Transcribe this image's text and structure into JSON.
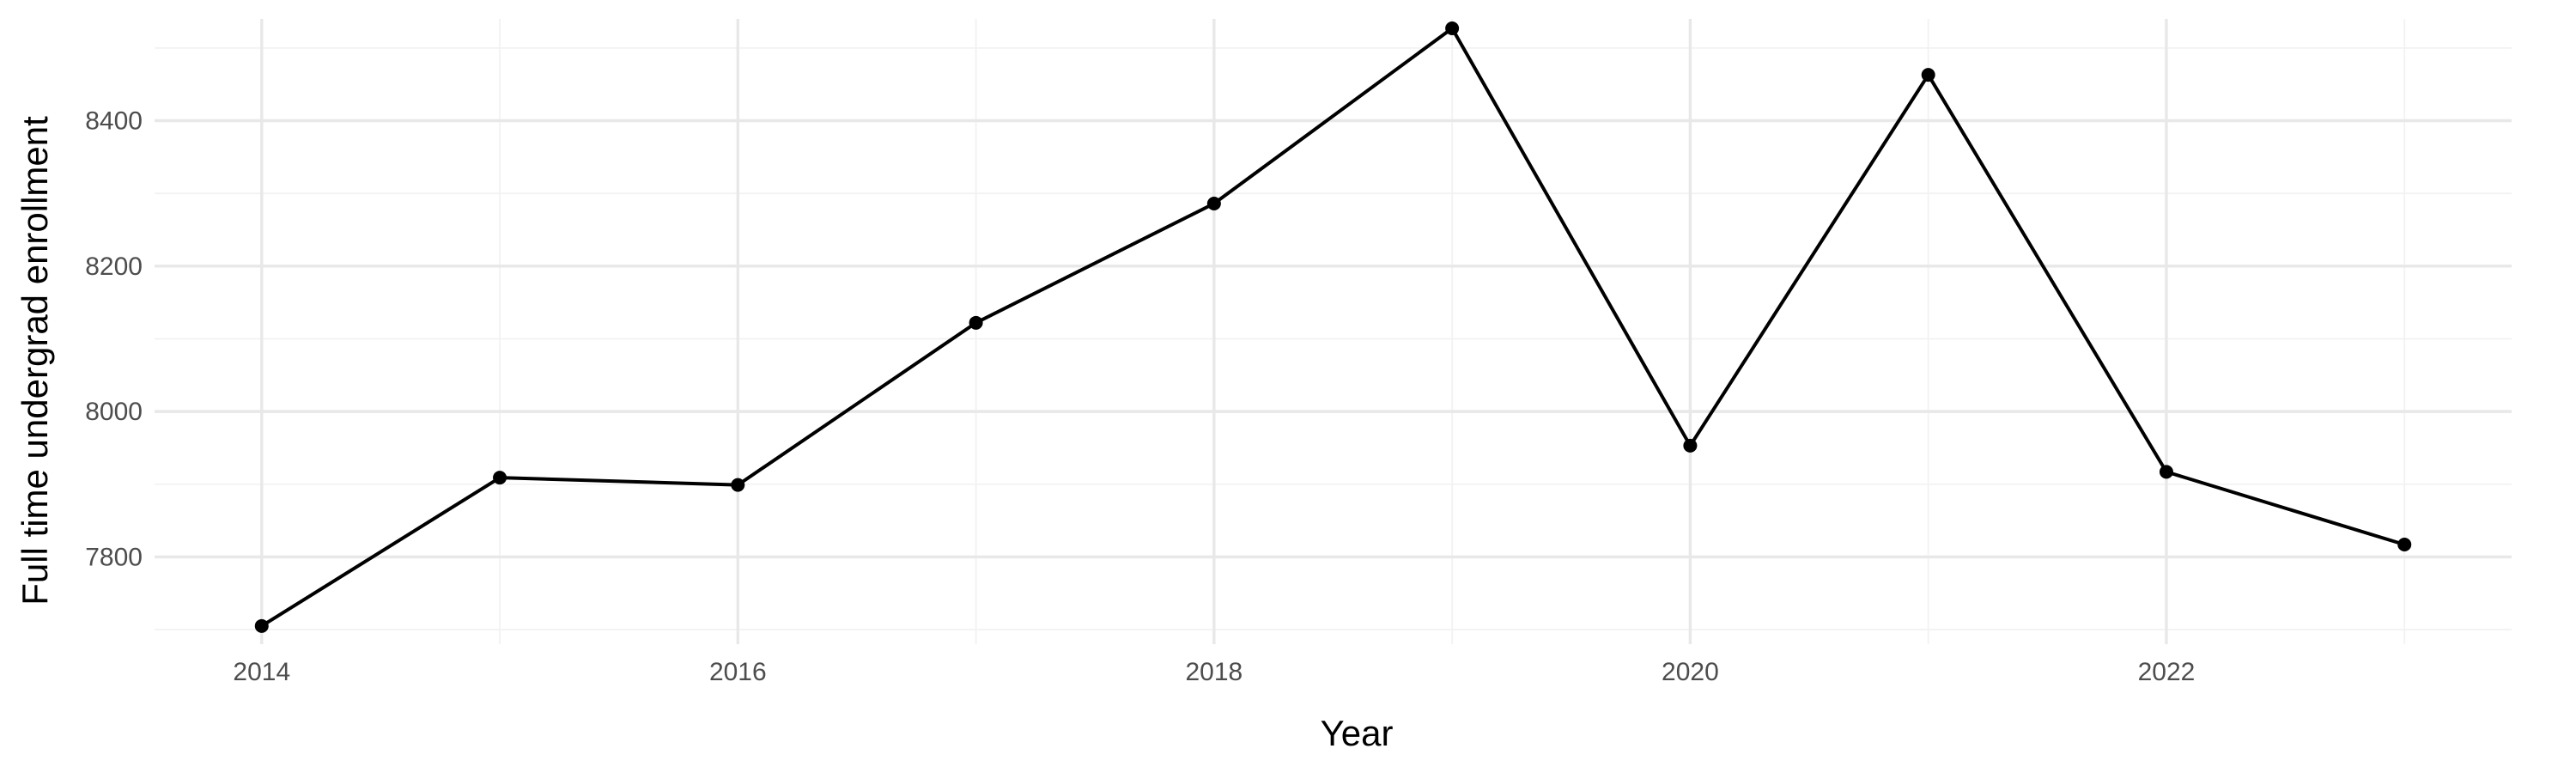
{
  "chart_data": {
    "type": "line",
    "title": "",
    "xlabel": "Year",
    "ylabel": "Full time undergrad enrollment",
    "x": [
      2014,
      2015,
      2016,
      2017,
      2018,
      2019,
      2020,
      2021,
      2022,
      2023
    ],
    "series": [
      {
        "values": [
          7705,
          7909,
          7899,
          8122,
          8286,
          8527,
          7953,
          8463,
          7917,
          7817
        ]
      }
    ],
    "xlim": [
      2013.55,
      2023.45
    ],
    "ylim": [
      7680,
      8540
    ],
    "x_ticks": [
      2014,
      2016,
      2018,
      2020,
      2022
    ],
    "x_tick_labels": [
      "2014",
      "2016",
      "2018",
      "2020",
      "2022"
    ],
    "y_ticks": [
      7800,
      8000,
      8200,
      8400
    ],
    "y_tick_labels": [
      "7800",
      "8000",
      "8200",
      "8400"
    ],
    "grid": true,
    "legend": "none",
    "colors": {
      "line": "#000000",
      "point": "#000000",
      "grid": "#ebebeb"
    }
  }
}
